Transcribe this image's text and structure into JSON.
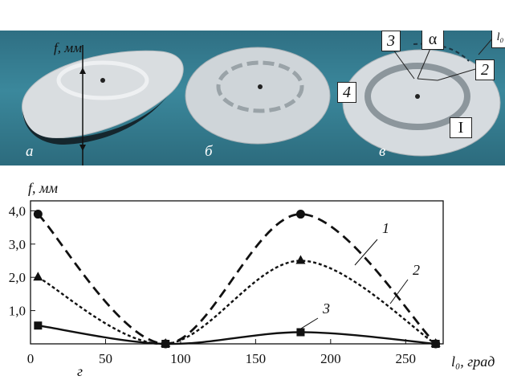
{
  "photo": {
    "panel_labels": [
      "а",
      "б",
      "в"
    ],
    "depth_label": "f, мм",
    "tags": [
      "3",
      "α",
      "l₀",
      "2",
      "4",
      "I"
    ]
  },
  "chart_data": {
    "type": "line",
    "panel_label": "г",
    "ylabel": "f, мм",
    "xlabel": "l₀, град",
    "xlim": [
      0,
      275
    ],
    "ylim": [
      0,
      4.3
    ],
    "xticks": [
      "0",
      "50",
      "100",
      "150",
      "200",
      "250"
    ],
    "yticks": [
      "4,0",
      "3,0",
      "2,0",
      "1,0"
    ],
    "series": [
      {
        "name": "1",
        "marker": "circle",
        "dash": "12,7",
        "x": [
          5,
          90,
          180,
          270
        ],
        "y": [
          3.9,
          0.0,
          3.9,
          0.0
        ]
      },
      {
        "name": "2",
        "marker": "triangle",
        "dash": "4,3",
        "x": [
          5,
          90,
          180,
          270
        ],
        "y": [
          2.0,
          0.0,
          2.5,
          0.0
        ]
      },
      {
        "name": "3",
        "marker": "square",
        "dash": "",
        "x": [
          5,
          90,
          180,
          270
        ],
        "y": [
          0.55,
          0.0,
          0.35,
          0.0
        ]
      }
    ],
    "grid": false
  }
}
